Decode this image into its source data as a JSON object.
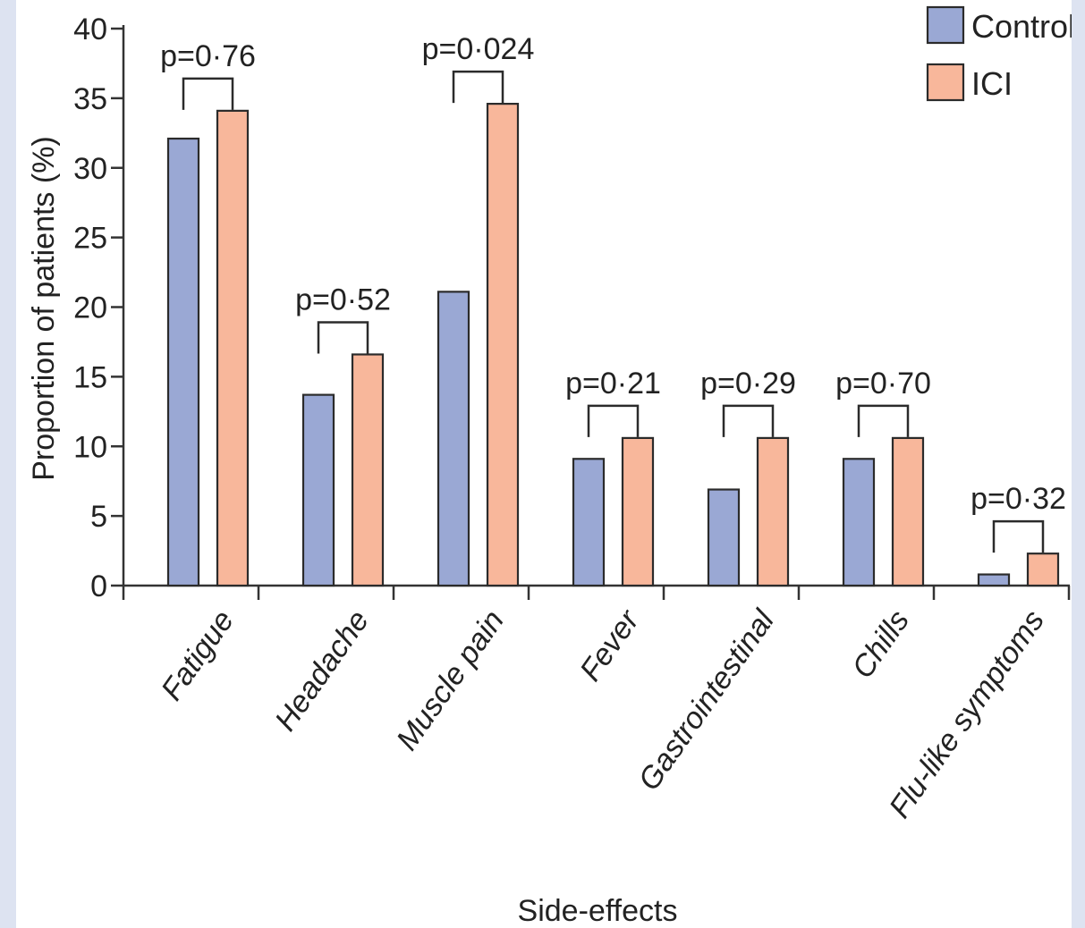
{
  "chart_data": {
    "type": "bar",
    "title": "",
    "xlabel": "Side-effects",
    "ylabel": "Proportion of patients (%)",
    "ylim": [
      0,
      40
    ],
    "yticks": [
      0,
      5,
      10,
      15,
      20,
      25,
      30,
      35,
      40
    ],
    "categories": [
      "Fatigue",
      "Headache",
      "Muscle pain",
      "Fever",
      "Gastrointestinal",
      "Chills",
      "Flu-like symptoms"
    ],
    "series": [
      {
        "name": "Control",
        "color": "#9aa8d4",
        "values": [
          32.1,
          13.7,
          21.1,
          9.1,
          6.9,
          9.1,
          0.8
        ]
      },
      {
        "name": "ICI",
        "color": "#f8b79b",
        "values": [
          34.1,
          16.6,
          34.6,
          10.6,
          10.6,
          10.6,
          2.3
        ]
      }
    ],
    "p_values": [
      "p=0·76",
      "p=0·52",
      "p=0·024",
      "p=0·21",
      "p=0·29",
      "p=0·70",
      "p=0·32"
    ],
    "legend_position": "top-right",
    "grid": false
  }
}
